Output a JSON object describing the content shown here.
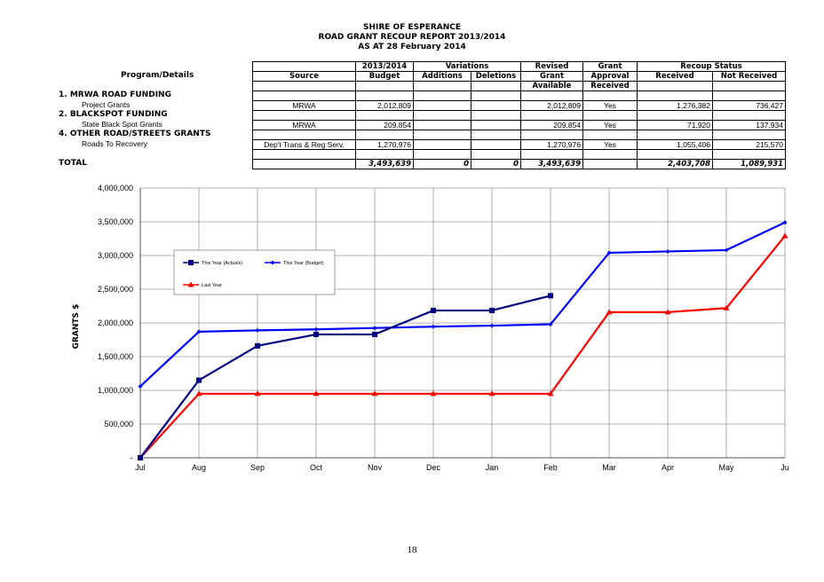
{
  "report": {
    "title1": "SHIRE OF ESPERANCE",
    "title2": "ROAD GRANT RECOUP REPORT 2013/2014",
    "title3": "AS AT 28 February 2014"
  },
  "table": {
    "program_header": "Program/Details",
    "headers": {
      "source": "Source",
      "year": "2013/2014",
      "budget": "Budget",
      "variations": "Variations",
      "additions": "Additions",
      "deletions": "Deletions",
      "revised1": "Revised",
      "revised2": "Grant",
      "revised3": "Available",
      "grant1": "Grant",
      "grant2": "Approval",
      "grant3": "Received",
      "recoup": "Recoup Status",
      "received": "Received",
      "not_received": "Not Received"
    },
    "sections": [
      {
        "heading": "1.  MRWA  ROAD FUNDING",
        "item": "Project Grants",
        "source": "MRWA",
        "budget": "2,012,809",
        "revised": "2,012,809",
        "approval": "Yes",
        "received": "1,276,382",
        "not_received": "736,427"
      },
      {
        "heading": "2. BLACKSPOT FUNDING",
        "item": "State Black Spot Grants",
        "source": "MRWA",
        "budget": "209,854",
        "revised": "209,854",
        "approval": "Yes",
        "received": "71,920",
        "not_received": "137,934"
      },
      {
        "heading": "4.  OTHER ROAD/STREETS GRANTS",
        "item": "Roads To Recovery",
        "source": "Dep't Trans & Reg Serv.",
        "budget": "1,270,976",
        "revised": "1,270,976",
        "approval": "Yes",
        "received": "1,055,406",
        "not_received": "215,570"
      }
    ],
    "total": {
      "label": "TOTAL",
      "budget": "3,493,639",
      "additions": "0",
      "deletions": "0",
      "revised": "3,493,639",
      "received": "2,403,708",
      "not_received": "1,089,931"
    }
  },
  "chart_data": {
    "type": "line",
    "ylabel": "GRANTS $",
    "xlabel": "",
    "categories": [
      "Jul",
      "Aug",
      "Sep",
      "Oct",
      "Nov",
      "Dec",
      "Jan",
      "Feb",
      "Mar",
      "Apr",
      "May",
      "Jun"
    ],
    "tick_labels": [
      "Jul",
      "Aug",
      "Sep",
      "Oct",
      "Nov",
      "Dec",
      "Jan",
      "Feb",
      "Mar",
      "Apr",
      "May",
      "Ju"
    ],
    "ylim": [
      0,
      4000000
    ],
    "yticks": [
      0,
      500000,
      1000000,
      1500000,
      2000000,
      2500000,
      3000000,
      3500000,
      4000000
    ],
    "ytick_labels": [
      "-",
      "500,000",
      "1,000,000",
      "1,500,000",
      "2,000,000",
      "2,500,000",
      "3,000,000",
      "3,500,000",
      "4,000,000"
    ],
    "grid": true,
    "legend_position": "upper-left",
    "series": [
      {
        "name": "This Year (Actuals)",
        "color": "#000080",
        "marker": "square",
        "values": [
          0,
          1150000,
          1660000,
          1830000,
          1830000,
          2185000,
          2185000,
          2404000,
          null,
          null,
          null,
          null
        ]
      },
      {
        "name": "This Year (Budget)",
        "color": "#0000ff",
        "marker": "diamond",
        "values": [
          1060000,
          1870000,
          1890000,
          1905000,
          1925000,
          1945000,
          1960000,
          1980000,
          3040000,
          3060000,
          3080000,
          3490000
        ]
      },
      {
        "name": "Last Year",
        "color": "#ff0000",
        "marker": "triangle",
        "values": [
          0,
          950000,
          950000,
          950000,
          950000,
          950000,
          950000,
          950000,
          2160000,
          2160000,
          2220000,
          3290000
        ]
      }
    ]
  },
  "page_number": "18"
}
